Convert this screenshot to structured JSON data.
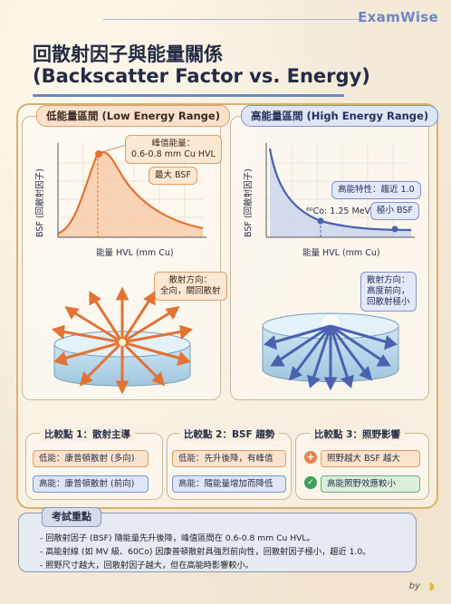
{
  "brand": "ExamWise",
  "title": {
    "zh": "回散射因子與能量關係",
    "en": "(Backscatter Factor vs. Energy)"
  },
  "left_panel": {
    "header": "低能量區間 (Low Energy Range)",
    "y_axis": "BSF (回散射因子)",
    "x_axis": "能量 HVL (mm Cu)",
    "peak_callout_line1": "峰值能量：",
    "peak_callout_line2": "0.6-0.8 mm Cu HVL",
    "max_label": "最大 BSF",
    "direction_line1": "散射方向：",
    "direction_line2": "全向，關回散射",
    "accent_color": "#e8834a"
  },
  "right_panel": {
    "header": "高能量區間 (High Energy Range)",
    "y_axis": "BSF (回散射因子)",
    "x_axis": "能量 HVL (mm Cu)",
    "trait_label": "高能特性：趨近 1.0",
    "co_label": "⁶⁰Co: 1.25 MeV",
    "min_label": "極小 BSF",
    "direction_line1": "散射方向：",
    "direction_line2": "高度前向，",
    "direction_line3": "回散射極小",
    "accent_color": "#4f68b5"
  },
  "comparisons": [
    {
      "title": "比較點 1：散射主導",
      "low": "低能：康普頓散射 (多向)",
      "high": "高能：康普頓散射 (前向)"
    },
    {
      "title": "比較點 2：BSF 趨勢",
      "low": "低能：先升後降，有峰值",
      "high": "高能：隨能量增加而降低"
    },
    {
      "title": "比較點 3：照野影響",
      "low": "照野越大 BSF 越大",
      "high": "高能照野效應較小"
    }
  ],
  "key_points": {
    "title": "考試重點",
    "items": [
      "- 回散射因子 (BSF) 隨能量先升後降，峰值區間在 0.6-0.8 mm Cu HVL。",
      "- 高能射線 (如 MV 級、60Co) 因康普頓散射具強烈前向性，回散射因子極小，趨近 1.0。",
      "- 照野尺寸越大，回散射因子越大，但在高能時影響較小。"
    ]
  },
  "footer": "by"
}
